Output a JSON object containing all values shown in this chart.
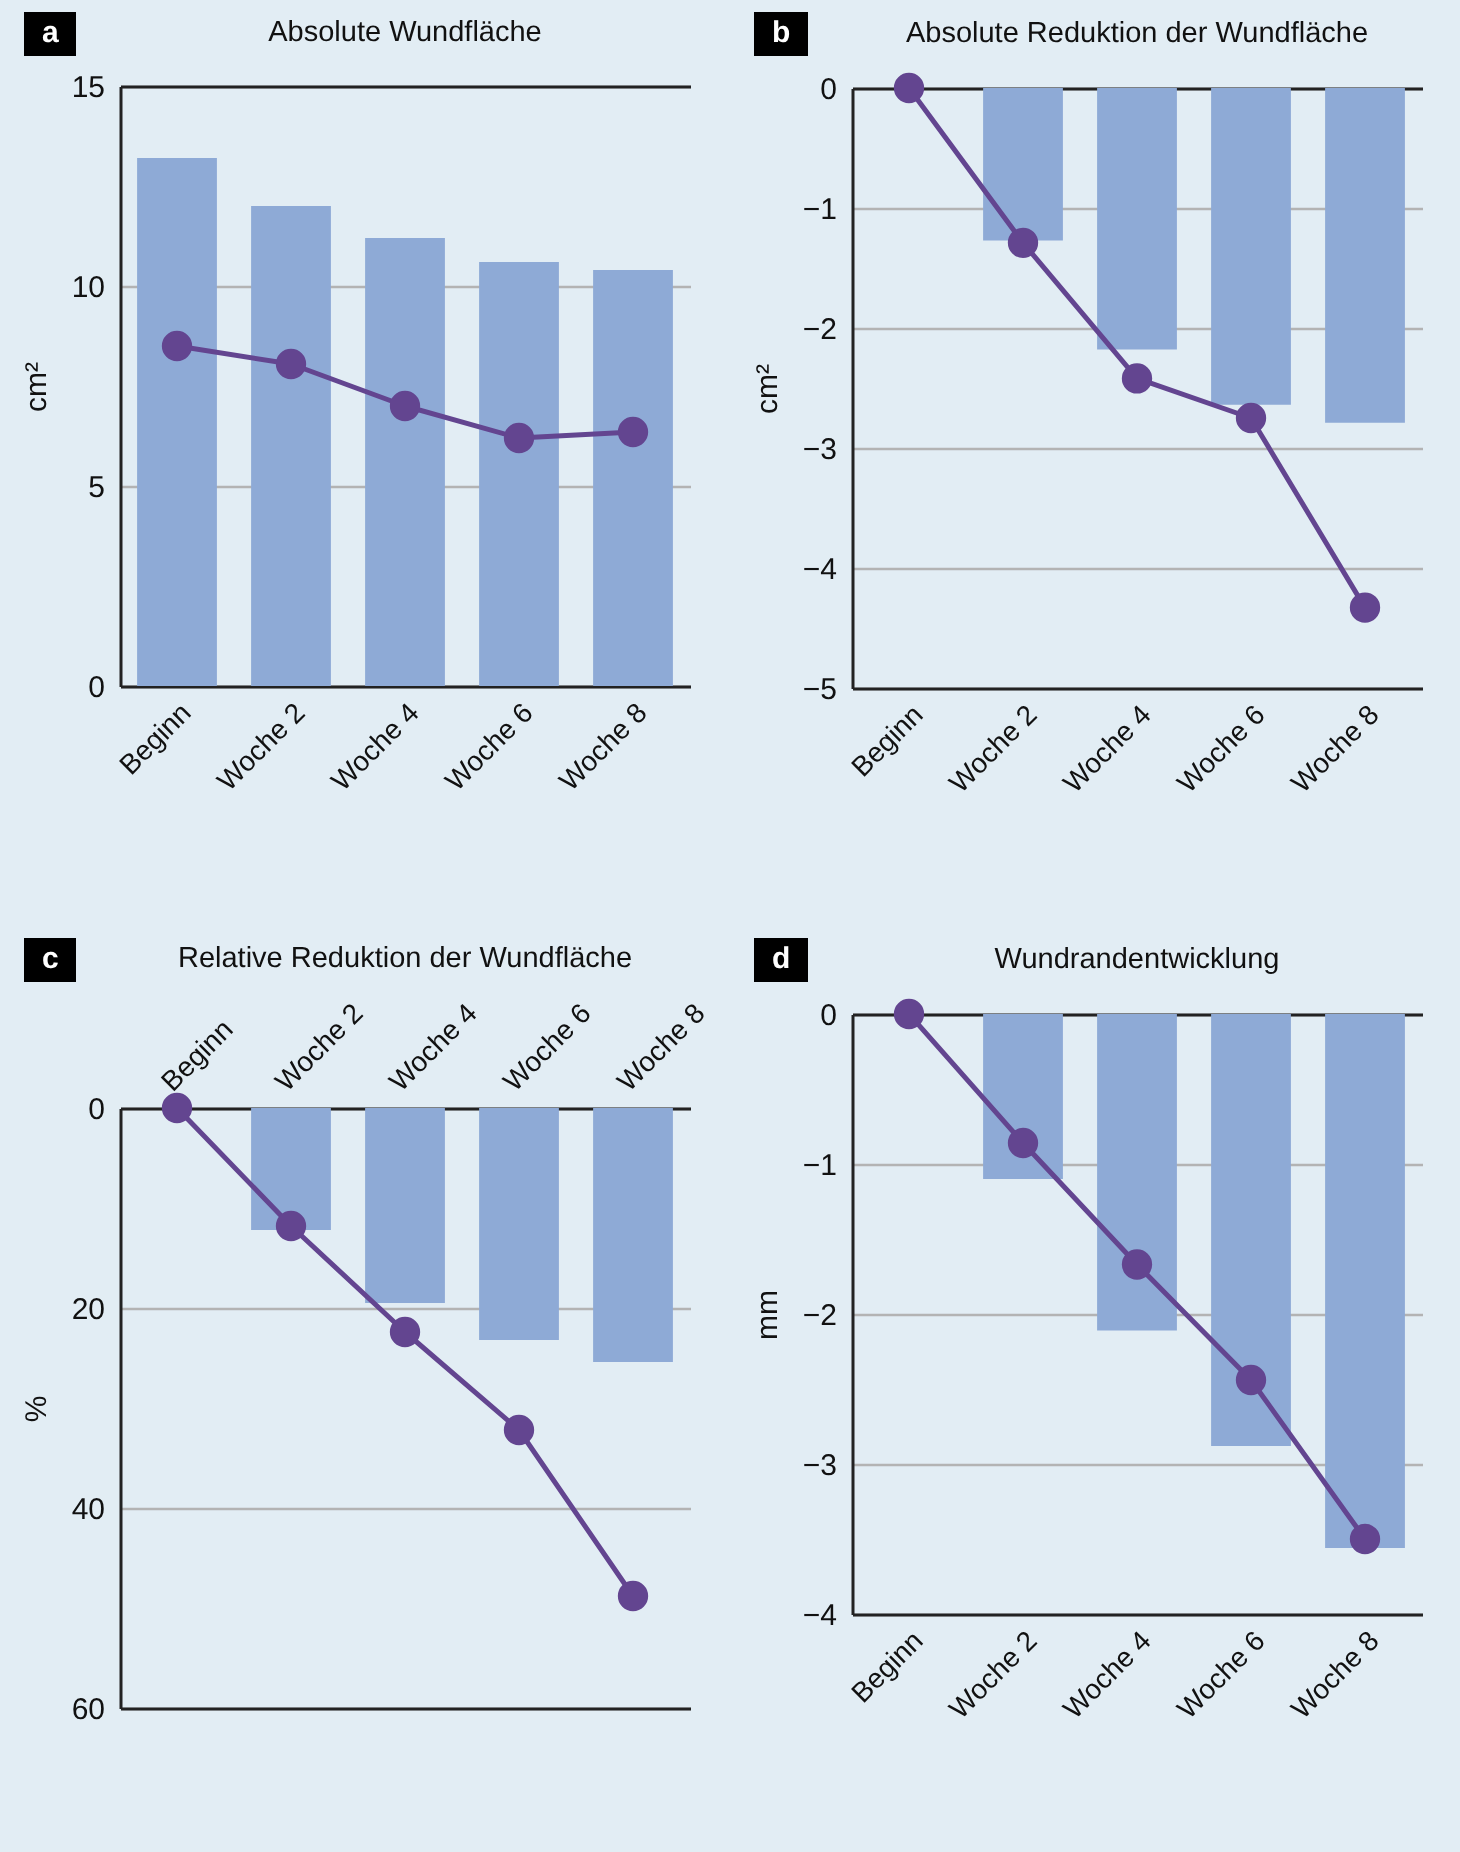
{
  "chart_data": [
    {
      "type": "bar",
      "title": "Absolute Wundfläche",
      "ylabel": "cm²",
      "annotations": [
        "a"
      ],
      "categories": [
        "Beginn",
        "Woche 2",
        "Woche 4",
        "Woche 6",
        "Woche 8"
      ],
      "ylim": [
        0,
        15
      ],
      "yticks": [
        0,
        5,
        10,
        15
      ],
      "grid": "y",
      "marker": "circle",
      "series": [
        {
          "type": "bar",
          "color": "#8eaad6",
          "values": [
            13.2,
            12.0,
            11.2,
            10.6,
            10.4
          ]
        },
        {
          "type": "line",
          "color": "#634590",
          "values": [
            8.5,
            8.05,
            7.0,
            6.2,
            6.35
          ]
        }
      ]
    },
    {
      "type": "bar",
      "title": "Absolute Reduktion der Wundfläche",
      "ylabel": "cm²",
      "annotations": [
        "b"
      ],
      "categories": [
        "Beginn",
        "Woche 2",
        "Woche 4",
        "Woche 6",
        "Woche 8"
      ],
      "ylim": [
        -5,
        0
      ],
      "yticks": [
        -5,
        -4,
        -3,
        -2,
        -1,
        0
      ],
      "grid": "y",
      "marker": "circle",
      "series": [
        {
          "type": "bar",
          "color": "#8eaad6",
          "values": [
            0,
            -1.27,
            -2.18,
            -2.64,
            -2.79
          ]
        },
        {
          "type": "line",
          "color": "#634590",
          "values": [
            0,
            -1.29,
            -2.42,
            -2.75,
            -4.33
          ]
        }
      ]
    },
    {
      "type": "bar",
      "title": "Relative Reduktion der Wundfläche",
      "ylabel": "%",
      "annotations": [
        "c"
      ],
      "categories": [
        "Beginn",
        "Woche 2",
        "Woche 4",
        "Woche 6",
        "Woche 8"
      ],
      "ylim": [
        60,
        0
      ],
      "yticks": [
        0,
        20,
        40,
        60
      ],
      "grid": "y",
      "marker": "circle",
      "series": [
        {
          "type": "bar",
          "color": "#8eaad6",
          "values": [
            0,
            12.2,
            19.5,
            23.2,
            25.4
          ]
        },
        {
          "type": "line",
          "color": "#634590",
          "values": [
            0,
            11.8,
            22.4,
            32.2,
            48.8
          ]
        }
      ]
    },
    {
      "type": "bar",
      "title": "Wundrandentwicklung",
      "ylabel": "mm",
      "annotations": [
        "d"
      ],
      "categories": [
        "Beginn",
        "Woche 2",
        "Woche 4",
        "Woche 6",
        "Woche 8"
      ],
      "ylim": [
        -4,
        0
      ],
      "yticks": [
        -4,
        -3,
        -2,
        -1,
        0
      ],
      "grid": "y",
      "marker": "circle",
      "series": [
        {
          "type": "bar",
          "color": "#8eaad6",
          "values": [
            0,
            -1.1,
            -2.11,
            -2.88,
            -3.56
          ]
        },
        {
          "type": "line",
          "color": "#634590",
          "values": [
            0,
            -0.86,
            -1.67,
            -2.44,
            -3.5
          ]
        }
      ]
    }
  ]
}
